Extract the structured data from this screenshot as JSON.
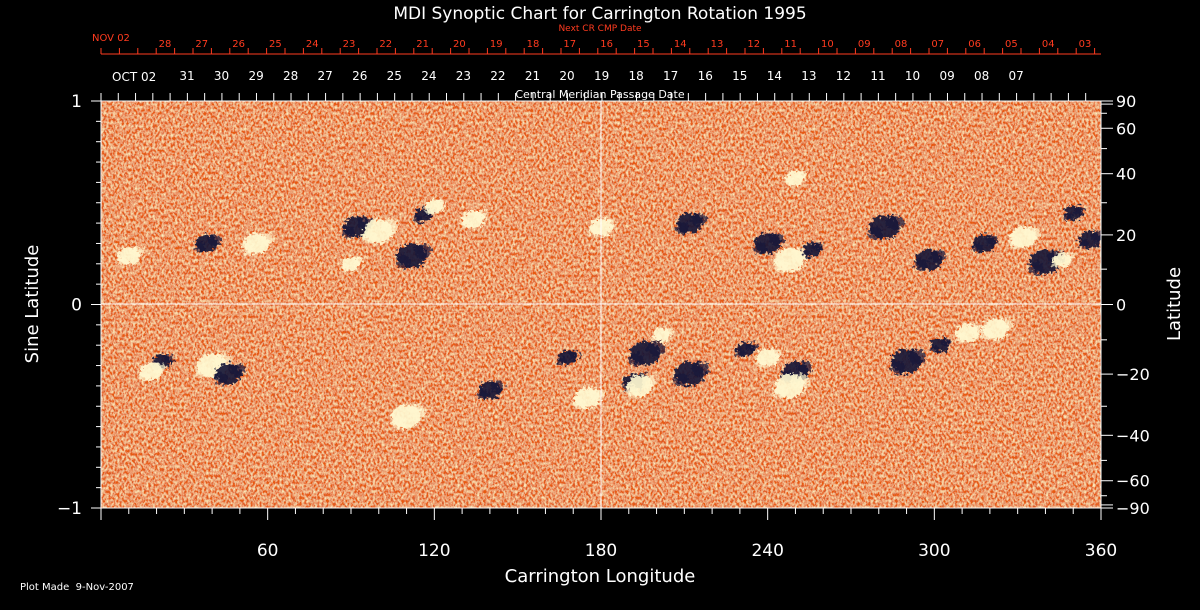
{
  "chart_data": {
    "type": "heatmap",
    "title": "MDI Synoptic Chart for Carrington Rotation 1995",
    "xlabel": "Carrington Longitude",
    "ylabel": "Sine Latitude",
    "ylabel_right": "Latitude",
    "xlim": [
      0,
      360
    ],
    "ylim": [
      -1,
      1
    ],
    "x_ticks": [
      60,
      120,
      180,
      240,
      300,
      360
    ],
    "y_ticks": [
      -1,
      0,
      1
    ],
    "y_tick_labels": [
      "−1",
      "0",
      "1"
    ],
    "right_lat_ticks": [
      90,
      60,
      40,
      20,
      0,
      -20,
      -40,
      -60,
      -90
    ],
    "right_lat_labels": [
      "90",
      "60",
      "40",
      "20",
      "0",
      "−20",
      "−40",
      "−60",
      "−90"
    ],
    "grid": "lines at longitude 180 and sine latitude 0",
    "top_axis_title": "Central Meridian Passage Date",
    "next_cr_title": "Next CR CMP Date",
    "cmp_month_label": "OCT 02",
    "cmp_dates": [
      "31",
      "30",
      "29",
      "28",
      "27",
      "26",
      "25",
      "24",
      "23",
      "22",
      "21",
      "20",
      "19",
      "18",
      "17",
      "16",
      "15",
      "14",
      "13",
      "12",
      "11",
      "10",
      "09",
      "08",
      "07"
    ],
    "next_cr_month_label": "NOV 02",
    "next_cr_dates": [
      "28",
      "27",
      "26",
      "25",
      "24",
      "23",
      "22",
      "21",
      "20",
      "19",
      "18",
      "17",
      "16",
      "15",
      "14",
      "13",
      "12",
      "11",
      "10",
      "09",
      "08",
      "07",
      "06",
      "05",
      "04",
      "03"
    ],
    "footer": "Plot Made  9-Nov-2007",
    "colors": {
      "background": "#000000",
      "field_base": "#e85a10",
      "positive_polarity": "#fff8d0",
      "negative_polarity": "#141438",
      "next_cr_text": "#ff3b1f",
      "axis": "#ffffff"
    },
    "features": [
      {
        "polarity": "negative",
        "longitude": 116,
        "sine_latitude": 0.44
      },
      {
        "polarity": "positive",
        "longitude": 134,
        "sine_latitude": 0.42
      },
      {
        "polarity": "negative",
        "longitude": 92,
        "sine_latitude": 0.38
      },
      {
        "polarity": "positive",
        "longitude": 100,
        "sine_latitude": 0.36
      },
      {
        "polarity": "positive",
        "longitude": 120,
        "sine_latitude": 0.48
      },
      {
        "polarity": "negative",
        "longitude": 38,
        "sine_latitude": 0.3
      },
      {
        "polarity": "positive",
        "longitude": 56,
        "sine_latitude": 0.3
      },
      {
        "polarity": "negative",
        "longitude": 112,
        "sine_latitude": 0.24
      },
      {
        "polarity": "positive",
        "longitude": 90,
        "sine_latitude": 0.2
      },
      {
        "polarity": "positive",
        "longitude": 10,
        "sine_latitude": 0.24
      },
      {
        "polarity": "negative",
        "longitude": 240,
        "sine_latitude": 0.3
      },
      {
        "polarity": "positive",
        "longitude": 248,
        "sine_latitude": 0.22
      },
      {
        "polarity": "negative",
        "longitude": 256,
        "sine_latitude": 0.27
      },
      {
        "polarity": "negative",
        "longitude": 318,
        "sine_latitude": 0.3
      },
      {
        "polarity": "positive",
        "longitude": 332,
        "sine_latitude": 0.33
      },
      {
        "polarity": "negative",
        "longitude": 340,
        "sine_latitude": 0.21
      },
      {
        "polarity": "positive",
        "longitude": 346,
        "sine_latitude": 0.22
      },
      {
        "polarity": "negative",
        "longitude": 356,
        "sine_latitude": 0.32
      },
      {
        "polarity": "negative",
        "longitude": 298,
        "sine_latitude": 0.22
      },
      {
        "polarity": "negative",
        "longitude": 282,
        "sine_latitude": 0.38
      },
      {
        "polarity": "negative",
        "longitude": 350,
        "sine_latitude": 0.45
      },
      {
        "polarity": "positive",
        "longitude": 180,
        "sine_latitude": 0.38
      },
      {
        "polarity": "negative",
        "longitude": 212,
        "sine_latitude": 0.4
      },
      {
        "polarity": "positive",
        "longitude": 40,
        "sine_latitude": -0.3
      },
      {
        "polarity": "negative",
        "longitude": 22,
        "sine_latitude": -0.28
      },
      {
        "polarity": "positive",
        "longitude": 18,
        "sine_latitude": -0.33
      },
      {
        "polarity": "negative",
        "longitude": 46,
        "sine_latitude": -0.34
      },
      {
        "polarity": "negative",
        "longitude": 196,
        "sine_latitude": -0.24
      },
      {
        "polarity": "positive",
        "longitude": 202,
        "sine_latitude": -0.15
      },
      {
        "polarity": "negative",
        "longitude": 192,
        "sine_latitude": -0.38
      },
      {
        "polarity": "positive",
        "longitude": 194,
        "sine_latitude": -0.4
      },
      {
        "polarity": "negative",
        "longitude": 212,
        "sine_latitude": -0.34
      },
      {
        "polarity": "negative",
        "longitude": 232,
        "sine_latitude": -0.22
      },
      {
        "polarity": "positive",
        "longitude": 240,
        "sine_latitude": -0.26
      },
      {
        "polarity": "negative",
        "longitude": 250,
        "sine_latitude": -0.33
      },
      {
        "polarity": "positive",
        "longitude": 248,
        "sine_latitude": -0.4
      },
      {
        "polarity": "negative",
        "longitude": 302,
        "sine_latitude": -0.2
      },
      {
        "polarity": "positive",
        "longitude": 312,
        "sine_latitude": -0.14
      },
      {
        "polarity": "positive",
        "longitude": 322,
        "sine_latitude": -0.12
      },
      {
        "polarity": "negative",
        "longitude": 290,
        "sine_latitude": -0.28
      },
      {
        "polarity": "negative",
        "longitude": 168,
        "sine_latitude": -0.26
      },
      {
        "polarity": "negative",
        "longitude": 140,
        "sine_latitude": -0.42
      },
      {
        "polarity": "positive",
        "longitude": 175,
        "sine_latitude": -0.46
      },
      {
        "polarity": "positive",
        "longitude": 110,
        "sine_latitude": -0.55
      },
      {
        "polarity": "positive",
        "longitude": 250,
        "sine_latitude": 0.62
      }
    ]
  }
}
